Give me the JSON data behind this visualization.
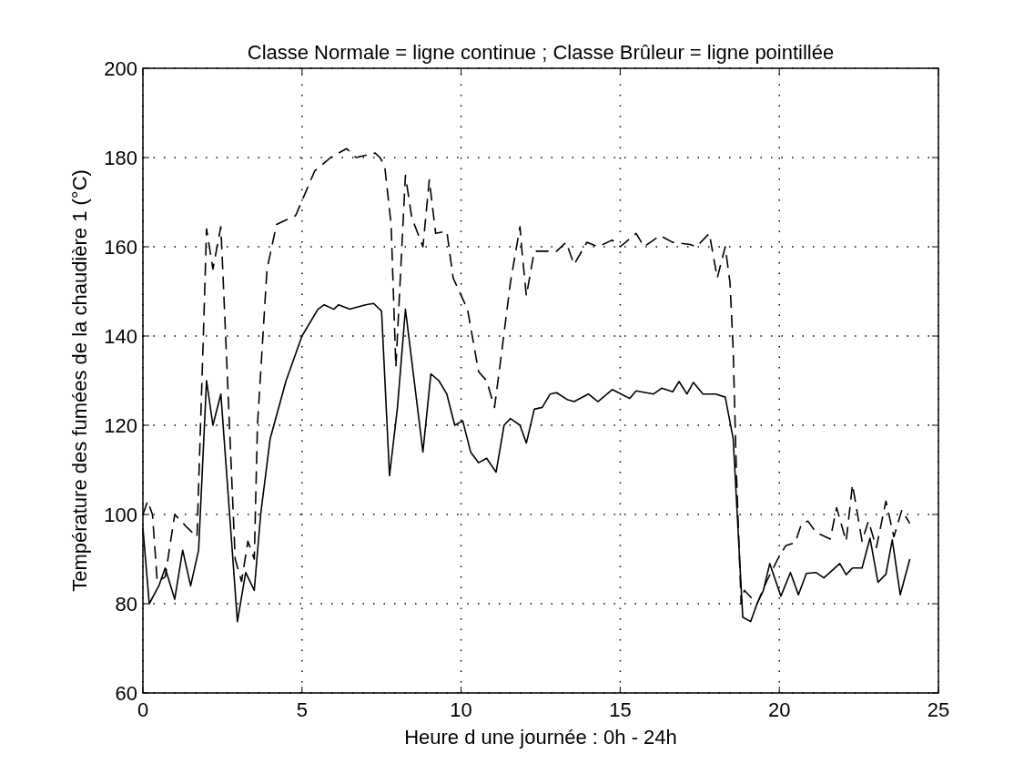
{
  "chart_data": {
    "type": "line",
    "title": "Classe Normale = ligne continue ; Classe Brûleur = ligne pointillée",
    "xlabel": "Heure d une journée : 0h - 24h",
    "ylabel": "Température des fumées de la chaudière 1 (°C)",
    "xlim": [
      0,
      25
    ],
    "xticks": [
      0,
      5,
      10,
      15,
      20,
      25
    ],
    "ylim": [
      60,
      200
    ],
    "yticks": [
      60,
      80,
      100,
      120,
      140,
      160,
      180,
      200
    ],
    "grid": true,
    "marker": "none",
    "series": [
      {
        "color": "#000000",
        "line_style": "solid",
        "x": [
          0,
          0.2,
          0.5,
          0.7,
          1.0,
          1.25,
          1.5,
          1.75,
          2.0,
          2.2,
          2.45,
          2.97,
          3.23,
          3.5,
          3.7,
          4.0,
          4.5,
          5.0,
          5.5,
          5.7,
          6.0,
          6.15,
          6.5,
          7.0,
          7.25,
          7.5,
          7.75,
          8.0,
          8.25,
          8.8,
          9.05,
          9.3,
          9.55,
          9.8,
          10.05,
          10.3,
          10.55,
          10.8,
          11.1,
          11.35,
          11.55,
          11.85,
          12.05,
          12.3,
          12.55,
          12.8,
          13.0,
          13.35,
          13.55,
          14.0,
          14.3,
          14.75,
          15.3,
          15.5,
          16.05,
          16.3,
          16.65,
          16.85,
          17.1,
          17.3,
          17.6,
          18.0,
          18.3,
          18.55,
          18.85,
          19.1,
          19.3,
          19.5,
          19.7,
          20.05,
          20.35,
          20.6,
          20.85,
          21.15,
          21.4,
          21.9,
          22.1,
          22.3,
          22.6,
          22.85,
          23.1,
          23.35,
          23.55,
          23.8,
          24.1
        ],
        "values": [
          97,
          80,
          84,
          88,
          81,
          92,
          84,
          92,
          130,
          120,
          127,
          76,
          87,
          83,
          100,
          117,
          130,
          140,
          146,
          147,
          146,
          147,
          146,
          147,
          147.3,
          145.6,
          108.7,
          124,
          146,
          114,
          131.5,
          130,
          127,
          120,
          121,
          114,
          111.6,
          112.6,
          109.5,
          120,
          121.5,
          120,
          116,
          123.6,
          124,
          127,
          127.3,
          125.7,
          125.3,
          127,
          125.3,
          128,
          126,
          127.7,
          127,
          128.3,
          127.5,
          129.8,
          127,
          129.6,
          127,
          127,
          126.3,
          117,
          77,
          76,
          80,
          83,
          89,
          81.7,
          87,
          82,
          86.8,
          87,
          85.8,
          89,
          86.5,
          88,
          88,
          94.7,
          84.8,
          86.6,
          94.3,
          82,
          90
        ]
      },
      {
        "color": "#000000",
        "line_style": "dashed",
        "x": [
          0,
          0.15,
          0.3,
          0.45,
          0.7,
          1.0,
          1.4,
          1.7,
          1.9,
          2.0,
          2.2,
          2.45,
          2.6,
          2.9,
          3.1,
          3.3,
          3.5,
          3.6,
          3.9,
          4.2,
          4.8,
          5.4,
          5.9,
          6.4,
          6.7,
          7.3,
          7.45,
          7.6,
          7.8,
          7.95,
          8.25,
          8.45,
          8.8,
          9.0,
          9.2,
          9.55,
          9.75,
          10.2,
          10.4,
          10.55,
          10.8,
          11.05,
          11.25,
          11.55,
          11.85,
          11.9,
          12.05,
          12.3,
          13.0,
          13.3,
          13.55,
          13.95,
          14.3,
          14.75,
          15.0,
          15.5,
          15.75,
          16.25,
          16.65,
          17.2,
          17.4,
          17.8,
          18.05,
          18.3,
          18.45,
          18.55,
          18.65,
          18.8,
          18.9,
          19.3,
          19.6,
          19.95,
          20.2,
          20.5,
          20.7,
          20.9,
          21.15,
          21.6,
          21.8,
          22.1,
          22.3,
          22.6,
          22.8,
          23.05,
          23.35,
          23.6,
          23.85,
          24.1
        ],
        "values": [
          100,
          103,
          100,
          85,
          86,
          100,
          97,
          95,
          140,
          164,
          155,
          164.5,
          140,
          90,
          85,
          94,
          90,
          120,
          155,
          165,
          167,
          177,
          180,
          182,
          180,
          181,
          180,
          178,
          165,
          133,
          176,
          166.5,
          160,
          175,
          163,
          163.5,
          153,
          146,
          138,
          132,
          130,
          124,
          135,
          152,
          164.5,
          160,
          149,
          159,
          159,
          161,
          156,
          161,
          160,
          161.5,
          160,
          163,
          160,
          162.5,
          161,
          160.5,
          160,
          163,
          153,
          160,
          152,
          137,
          109.5,
          80,
          83,
          80,
          85,
          90,
          93,
          93.7,
          98,
          98.5,
          96,
          94.5,
          101.5,
          94,
          106.7,
          94,
          98.5,
          92.6,
          103,
          95,
          101,
          98
        ]
      }
    ]
  }
}
